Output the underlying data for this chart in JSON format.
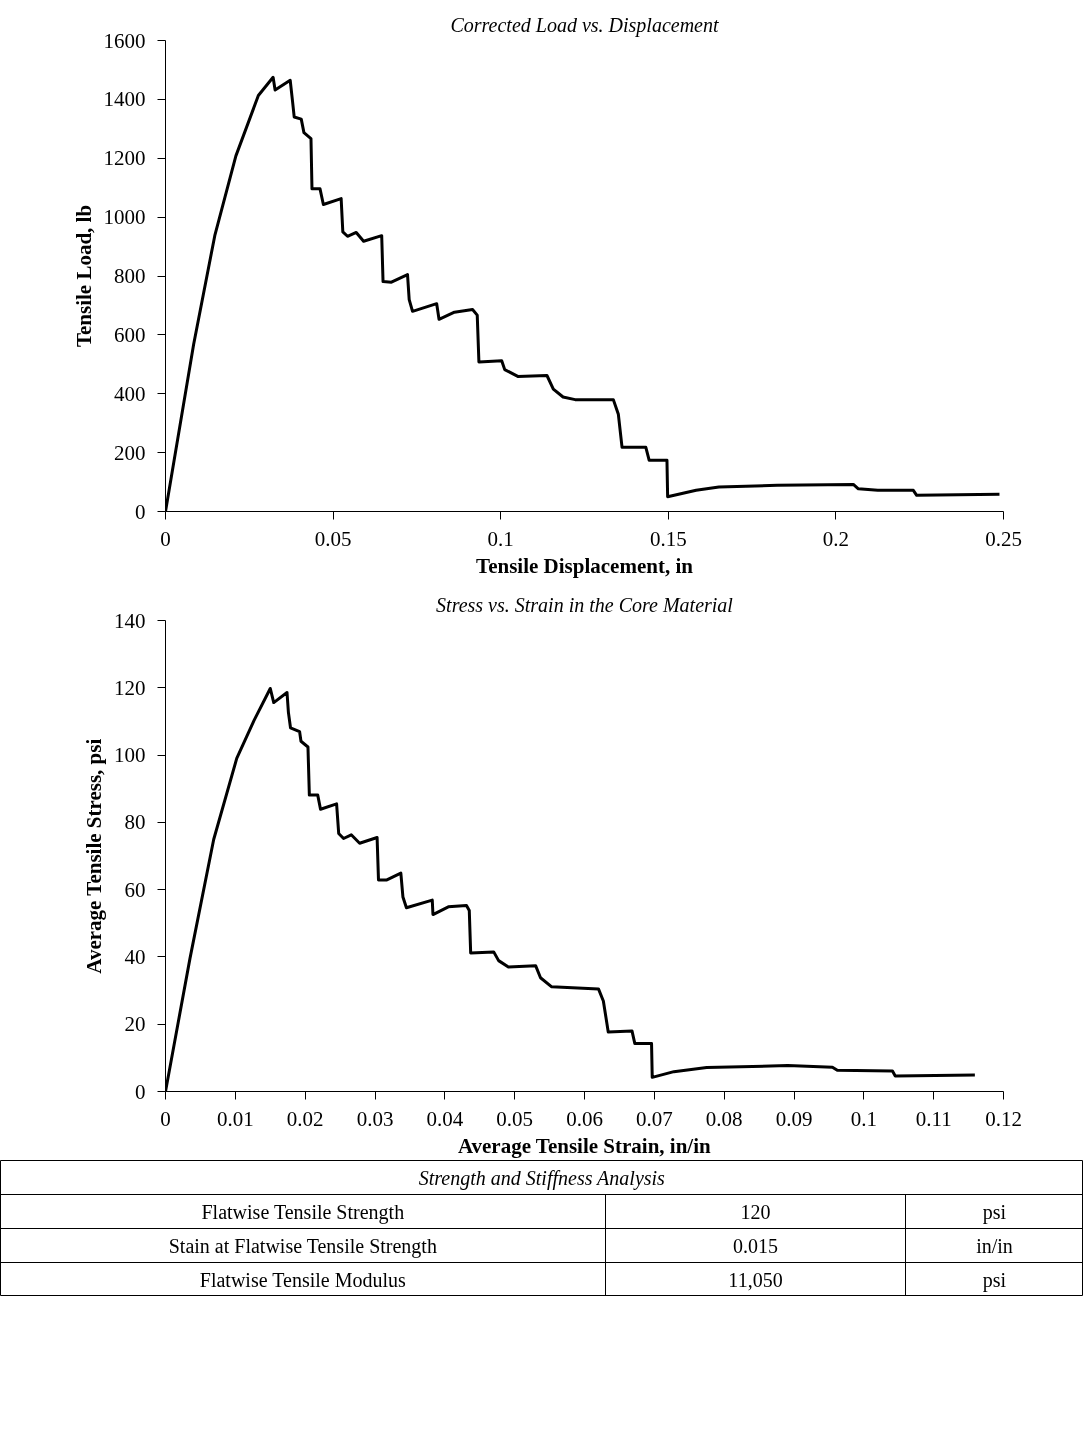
{
  "chart_data": [
    {
      "type": "line",
      "title": "Corrected Load vs. Displacement",
      "xlabel": "Tensile Displacement, in",
      "ylabel": "Tensile Load, lb",
      "xlim": [
        0,
        0.25
      ],
      "ylim": [
        0,
        1600
      ],
      "xticks": [
        0,
        0.05,
        0.1,
        0.15,
        0.2,
        0.25
      ],
      "yticks": [
        0,
        200,
        400,
        600,
        800,
        1000,
        1200,
        1400,
        1600
      ],
      "grid": false,
      "marker": "none",
      "line_style": "solid",
      "series": [
        {
          "color": "#000000",
          "x": [
            0,
            0.0084,
            0.0147,
            0.021,
            0.0277,
            0.0321,
            0.0327,
            0.0372,
            0.0379,
            0.0384,
            0.0405,
            0.0413,
            0.0434,
            0.0437,
            0.0461,
            0.0471,
            0.0524,
            0.0529,
            0.0543,
            0.0569,
            0.0591,
            0.0645,
            0.0649,
            0.0674,
            0.0722,
            0.0727,
            0.0737,
            0.0809,
            0.0816,
            0.0862,
            0.0916,
            0.093,
            0.0935,
            0.1003,
            0.1012,
            0.1051,
            0.1138,
            0.1157,
            0.1186,
            0.1222,
            0.1336,
            0.1351,
            0.1362,
            0.1433,
            0.1443,
            0.1496,
            0.1498,
            0.1583,
            0.1651,
            0.1825,
            0.2052,
            0.2067,
            0.2125,
            0.2231,
            0.2241,
            0.2488
          ],
          "values": [
            0,
            568,
            937,
            1208,
            1413,
            1475,
            1432,
            1465,
            1393,
            1340,
            1333,
            1287,
            1267,
            1096,
            1096,
            1043,
            1063,
            950,
            935,
            948,
            918,
            937,
            781,
            779,
            805,
            720,
            680,
            706,
            653,
            677,
            686,
            667,
            508,
            512,
            482,
            459,
            462,
            416,
            389,
            380,
            380,
            330,
            218,
            218,
            174,
            174,
            50,
            72,
            83,
            89,
            92,
            77,
            72,
            72,
            55,
            59
          ]
        }
      ]
    },
    {
      "type": "line",
      "title": "Stress vs. Strain in the Core Material",
      "xlabel": "Average Tensile Strain, in/in",
      "ylabel": "Average Tensile Stress, psi",
      "xlim": [
        0,
        0.12
      ],
      "ylim": [
        0,
        140
      ],
      "xticks": [
        0,
        0.01,
        0.02,
        0.03,
        0.04,
        0.05,
        0.06,
        0.07,
        0.08,
        0.09,
        0.1,
        0.11,
        0.12
      ],
      "yticks": [
        0,
        20,
        40,
        60,
        80,
        100,
        120,
        140
      ],
      "grid": false,
      "marker": "none",
      "line_style": "solid",
      "series": [
        {
          "color": "#000000",
          "x": [
            0,
            0.0035,
            0.0069,
            0.0102,
            0.0127,
            0.015,
            0.0155,
            0.0174,
            0.0176,
            0.0179,
            0.0192,
            0.0194,
            0.0204,
            0.0206,
            0.0218,
            0.0222,
            0.0245,
            0.0248,
            0.0255,
            0.0266,
            0.0278,
            0.0303,
            0.0305,
            0.0317,
            0.0337,
            0.034,
            0.0345,
            0.0382,
            0.0383,
            0.0405,
            0.0431,
            0.0435,
            0.0437,
            0.047,
            0.0477,
            0.0491,
            0.053,
            0.0537,
            0.0553,
            0.062,
            0.0627,
            0.0634,
            0.0668,
            0.0672,
            0.0696,
            0.0697,
            0.0728,
            0.0775,
            0.0891,
            0.0955,
            0.0962,
            0.1041,
            0.1045,
            0.1159
          ],
          "values": [
            0,
            39.5,
            74.9,
            99,
            110.4,
            119.8,
            115.6,
            118.6,
            112.7,
            108.1,
            107,
            104.1,
            102.4,
            88.1,
            88.1,
            83.9,
            85.5,
            76.7,
            75.2,
            76.3,
            73.8,
            75.5,
            62.9,
            62.9,
            64.9,
            57.8,
            54.6,
            56.9,
            52.6,
            54.9,
            55.3,
            53.8,
            41.2,
            41.5,
            38.9,
            37,
            37.4,
            33.8,
            31.1,
            30.5,
            26.9,
            17.7,
            18,
            14.3,
            14.3,
            4.2,
            5.9,
            7.1,
            7.7,
            7.2,
            6.3,
            6.1,
            4.6,
            4.9
          ]
        }
      ]
    },
    {
      "type": "other",
      "title": "Strength and Stiffness Analysis",
      "categories": [
        "Flatwise Tensile Strength",
        "Stain at Flatwise Tensile Strength",
        "Flatwise Tensile Modulus"
      ],
      "value_labels": [
        "120",
        "0.015",
        "11,050"
      ],
      "annotations": [
        "psi",
        "in/in",
        "psi"
      ]
    }
  ]
}
